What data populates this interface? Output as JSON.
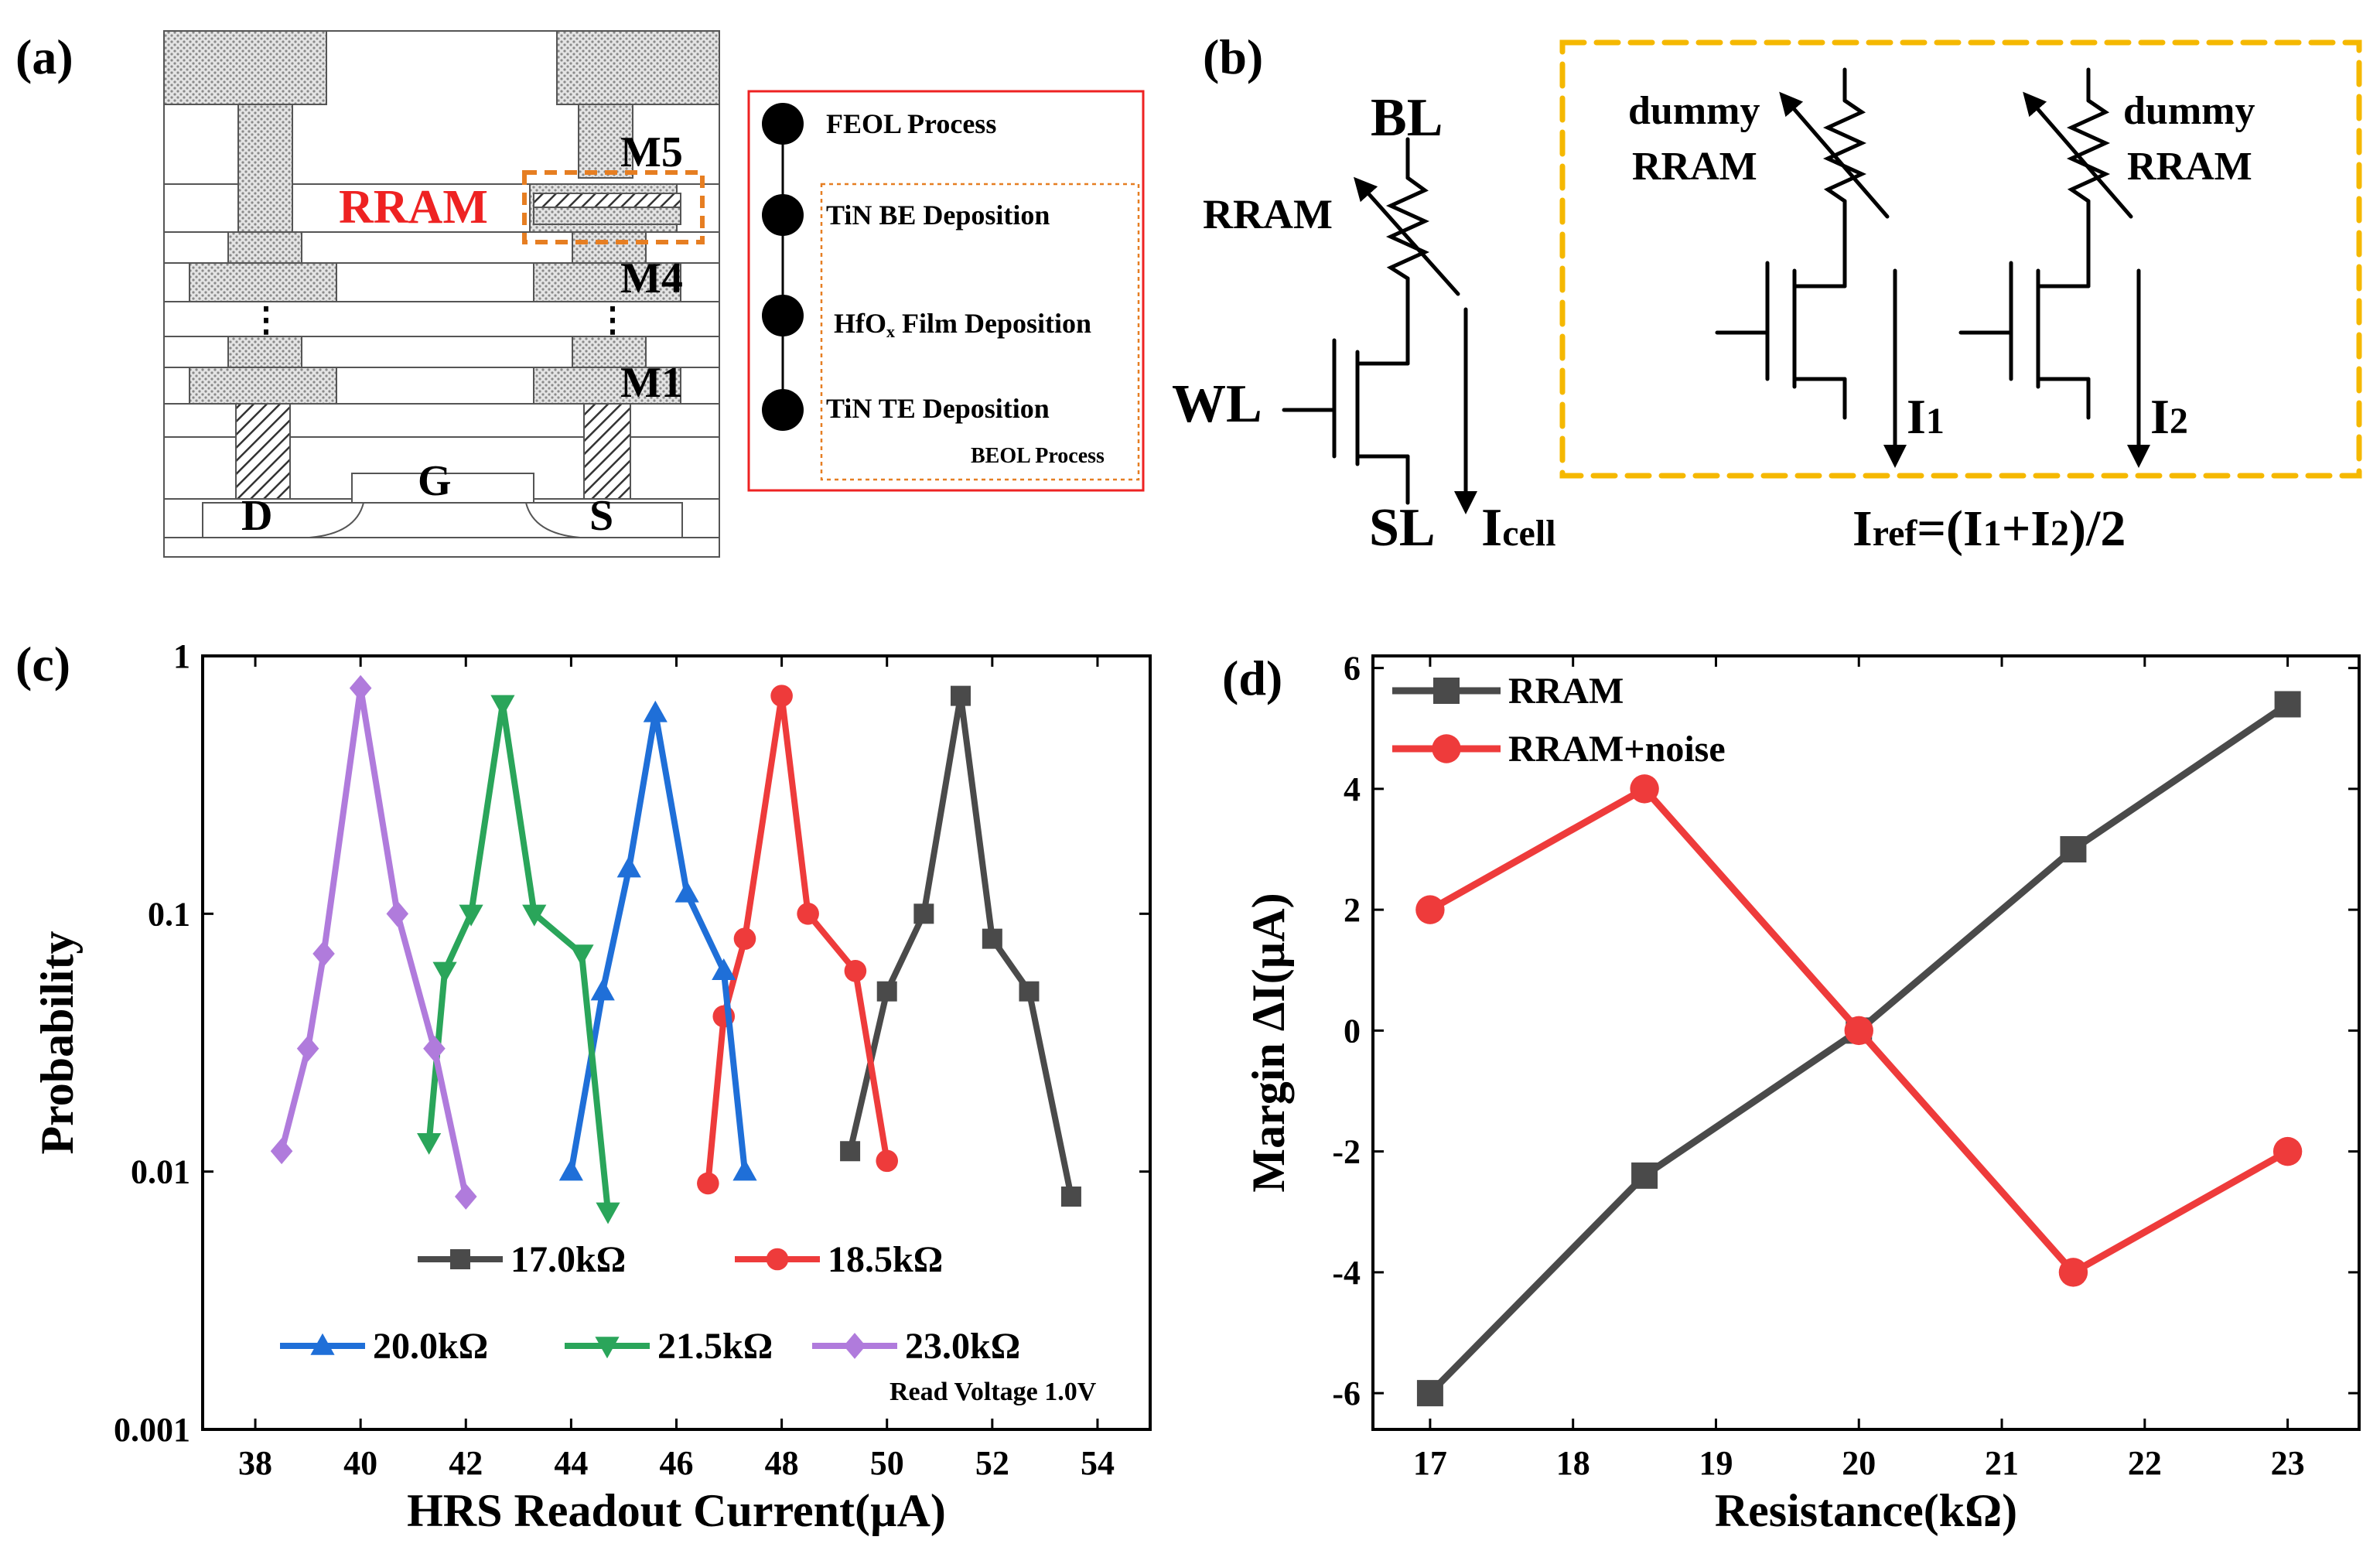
{
  "panels": {
    "a": {
      "label": "(a)",
      "layers": {
        "m5": "M5",
        "m4": "M4",
        "m1": "M1",
        "rram": "RRAM"
      },
      "terminals": {
        "d": "D",
        "g": "G",
        "s": "S"
      },
      "process": {
        "feol": "FEOL Process",
        "be": "TiN BE Deposition",
        "hfo_main": "HfO",
        "hfo_sub": "x",
        "hfo_rest": " Film Deposition",
        "te": "TiN TE Deposition",
        "beol": "BEOL Process"
      }
    },
    "b": {
      "label": "(b)",
      "bl": "BL",
      "wl": "WL",
      "sl": "SL",
      "rram": "RRAM",
      "icell_main": "I",
      "icell_sub": "cell",
      "dummy1": "dummy",
      "dummy2": "RRAM",
      "i1_main": "I",
      "i1_sub": "1",
      "i2_main": "I",
      "i2_sub": "2",
      "iref_main": "I",
      "iref_sub": "ref",
      "iref_eq": "=(I",
      "iref_1": "1",
      "iref_plus": "+I",
      "iref_2": "2",
      "iref_tail": ")/2"
    },
    "c": {
      "label": "(c)",
      "annotation": "Read Voltage 1.0V"
    },
    "d": {
      "label": "(d)"
    }
  },
  "chart_data": [
    {
      "type": "line",
      "panel": "c",
      "xlabel": "HRS Readout Current(µA)",
      "ylabel": "Probability",
      "yscale": "log",
      "xlim": [
        37,
        55
      ],
      "ylim": [
        0.001,
        1
      ],
      "xticks": [
        38,
        40,
        42,
        44,
        46,
        48,
        50,
        52,
        54
      ],
      "yticks": [
        {
          "value": 0.001,
          "label": "0.001"
        },
        {
          "value": 0.01,
          "label": "0.01"
        },
        {
          "value": 0.1,
          "label": "0.1"
        },
        {
          "value": 1,
          "label": "1"
        }
      ],
      "series": [
        {
          "name": "17.0kΩ",
          "color": "#4a4a4a",
          "marker": "square",
          "x": [
            49.3,
            50.0,
            50.7,
            51.4,
            52.0,
            52.7,
            53.5
          ],
          "y": [
            0.012,
            0.05,
            0.1,
            0.7,
            0.08,
            0.05,
            0.008
          ]
        },
        {
          "name": "18.5kΩ",
          "color": "#ee3b3b",
          "marker": "circle",
          "x": [
            46.6,
            46.9,
            47.3,
            48.0,
            48.5,
            49.4,
            50.0
          ],
          "y": [
            0.009,
            0.04,
            0.08,
            0.7,
            0.1,
            0.06,
            0.011
          ]
        },
        {
          "name": "20.0kΩ",
          "color": "#1f6fd8",
          "marker": "triangle-up",
          "x": [
            44.0,
            44.6,
            45.1,
            45.6,
            46.2,
            46.9,
            47.3
          ],
          "y": [
            0.01,
            0.05,
            0.15,
            0.6,
            0.12,
            0.06,
            0.01
          ]
        },
        {
          "name": "21.5kΩ",
          "color": "#2aa55a",
          "marker": "triangle-down",
          "x": [
            41.3,
            41.6,
            42.1,
            42.7,
            43.3,
            44.2,
            44.7
          ],
          "y": [
            0.013,
            0.06,
            0.1,
            0.65,
            0.1,
            0.07,
            0.007
          ]
        },
        {
          "name": "23.0kΩ",
          "color": "#b07bdc",
          "marker": "diamond",
          "x": [
            38.5,
            39.0,
            39.3,
            40.0,
            40.7,
            41.4,
            42.0
          ],
          "y": [
            0.012,
            0.03,
            0.07,
            0.75,
            0.1,
            0.03,
            0.008
          ]
        }
      ]
    },
    {
      "type": "line",
      "panel": "d",
      "xlabel": "Resistance(kΩ)",
      "ylabel": "Margin ΔI(µA)",
      "xlim": [
        16.6,
        23.5
      ],
      "ylim": [
        -6.6,
        6.2
      ],
      "xticks": [
        17,
        18,
        19,
        20,
        21,
        22,
        23
      ],
      "yticks": [
        -6,
        -4,
        -2,
        0,
        2,
        4,
        6
      ],
      "series": [
        {
          "name": "RRAM",
          "color": "#4a4a4a",
          "marker": "square",
          "x": [
            17,
            18.5,
            20,
            21.5,
            23
          ],
          "y": [
            -6,
            -2.4,
            0,
            3,
            5.4
          ]
        },
        {
          "name": "RRAM+noise",
          "color": "#ee3b3b",
          "marker": "circle",
          "x": [
            17,
            18.5,
            20,
            21.5,
            23
          ],
          "y": [
            2,
            4,
            0,
            -4,
            -2
          ]
        }
      ]
    }
  ]
}
